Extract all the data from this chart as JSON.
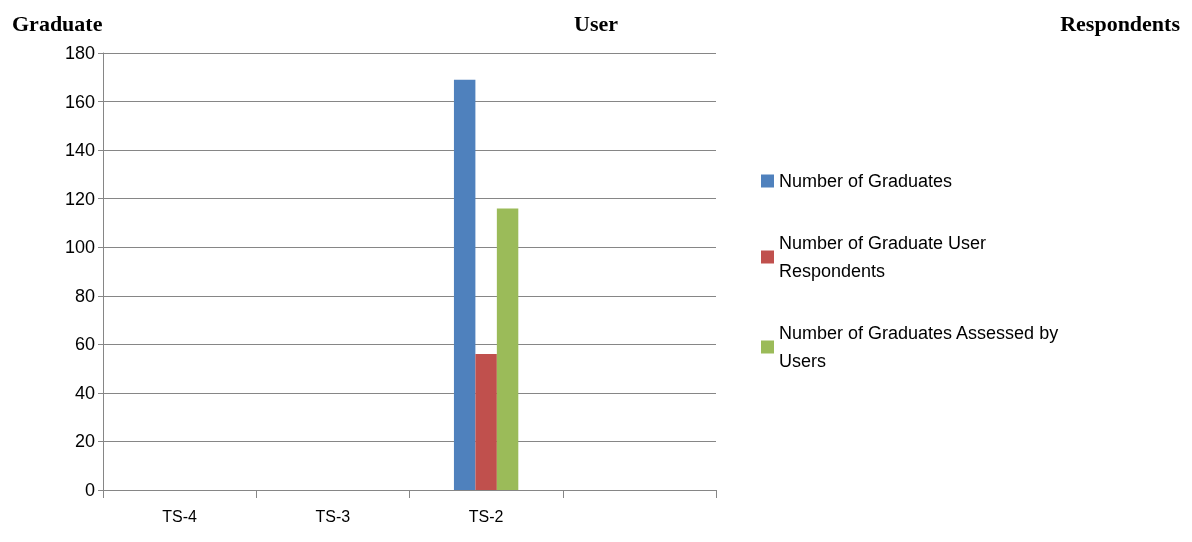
{
  "chart_data": {
    "type": "bar",
    "title": "Graduate User Respondents",
    "categories": [
      "TS-4",
      "TS-3",
      "TS-2",
      null
    ],
    "series": [
      {
        "name": "Number of Graduates",
        "color": "#4f81bd",
        "values": [
          null,
          null,
          169,
          null
        ]
      },
      {
        "name": "Number of Graduate User Respondents",
        "color": "#c0504d",
        "values": [
          null,
          null,
          56,
          null
        ]
      },
      {
        "name": "Number of Graduates Assessed by Users",
        "color": "#9bbb59",
        "values": [
          null,
          null,
          116,
          null
        ]
      }
    ],
    "ylim": [
      0,
      180
    ],
    "yticks": [
      0,
      20,
      40,
      60,
      80,
      100,
      120,
      140,
      160,
      180
    ],
    "grid": "y",
    "legend": "right"
  }
}
